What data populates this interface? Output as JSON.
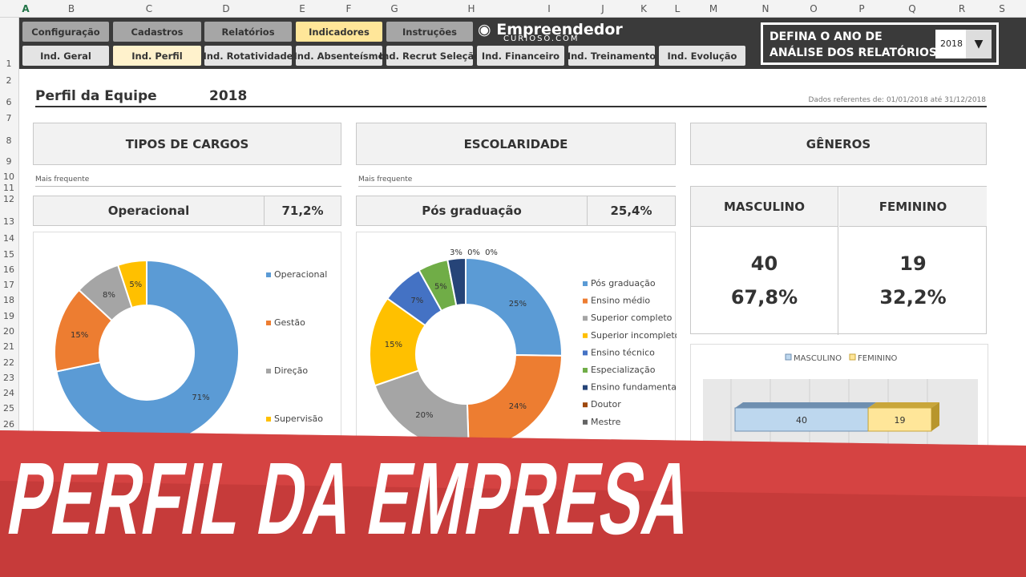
{
  "columns": [
    "A",
    "B",
    "C",
    "D",
    "E",
    "F",
    "G",
    "H",
    "I",
    "J",
    "K",
    "L",
    "M",
    "N",
    "O",
    "P",
    "Q",
    "R",
    "S"
  ],
  "rows": [
    "1",
    "2",
    "6",
    "7",
    "8",
    "9",
    "10",
    "11",
    "12",
    "13",
    "14",
    "15",
    "16",
    "17",
    "18",
    "19",
    "20",
    "21",
    "22",
    "23",
    "24",
    "25",
    "26"
  ],
  "nav": {
    "top": [
      "Configuração",
      "Cadastros",
      "Relatórios",
      "Indicadores",
      "Instruções"
    ],
    "bottom": [
      "Ind. Geral",
      "Ind. Perfil",
      "Ind. Rotatividade",
      "Ind. Absenteísmo",
      "Ind. Recrut Seleção",
      "Ind. Financeiro",
      "Ind. Treinamento",
      "Ind. Evolução"
    ],
    "logo": "Empreendedor",
    "logo_sub": "CURIOSO.COM",
    "year_label_1": "DEFINA O ANO DE",
    "year_label_2": "ANÁLISE DOS RELATÓRIOS",
    "year_value": "2018"
  },
  "page": {
    "title": "Perfil da Equipe",
    "year": "2018",
    "reference": "Dados referentes de: 01/01/2018 até 31/12/2018"
  },
  "cargos": {
    "header": "TIPOS DE CARGOS",
    "mais_frequente": "Mais frequente",
    "top": "Operacional",
    "top_pct": "71,2%"
  },
  "escolaridade": {
    "header": "ESCOLARIDADE",
    "mais_frequente": "Mais frequente",
    "top": "Pós graduação",
    "top_pct": "25,4%"
  },
  "generos": {
    "header": "GÊNEROS",
    "masc_label": "MASCULINO",
    "fem_label": "FEMININO",
    "masc_n": "40",
    "fem_n": "19",
    "masc_pct": "67,8%",
    "fem_pct": "32,2%"
  },
  "banner": {
    "text": "PERFIL DA EMPRESA",
    "color": "#d9403f"
  },
  "chart_data": [
    {
      "type": "pie",
      "donut": true,
      "categories": [
        "Operacional",
        "Gestão",
        "Direção",
        "Supervisão"
      ],
      "values": [
        71,
        15,
        8,
        5
      ],
      "labels": [
        "71%",
        "15%",
        "8%",
        "5%"
      ],
      "colors": [
        "#5b9bd5",
        "#ed7d31",
        "#a5a5a5",
        "#ffc000"
      ],
      "legend": "right"
    },
    {
      "type": "pie",
      "donut": true,
      "categories": [
        "Pós graduação",
        "Ensino médio",
        "Superior completo",
        "Superior incompleto",
        "Ensino técnico",
        "Especialização",
        "Ensino fundamental",
        "Doutor",
        "Mestre"
      ],
      "values": [
        25,
        24,
        20,
        15,
        7,
        5,
        3,
        0,
        0
      ],
      "labels": [
        "25%",
        "24%",
        "20%",
        "15%",
        "7%",
        "5%",
        "3%",
        "0%",
        "0%"
      ],
      "colors": [
        "#5b9bd5",
        "#ed7d31",
        "#a5a5a5",
        "#ffc000",
        "#4472c4",
        "#70ad47",
        "#264478",
        "#9e480e",
        "#636363"
      ],
      "legend": "right"
    },
    {
      "type": "bar",
      "stacked": true,
      "orientation": "horizontal",
      "series": [
        {
          "name": "MASCULINO",
          "values": [
            40
          ]
        },
        {
          "name": "FEMININO",
          "values": [
            19
          ]
        }
      ],
      "colors": [
        "#bdd7ee",
        "#ffe699"
      ],
      "legend": "top"
    }
  ]
}
